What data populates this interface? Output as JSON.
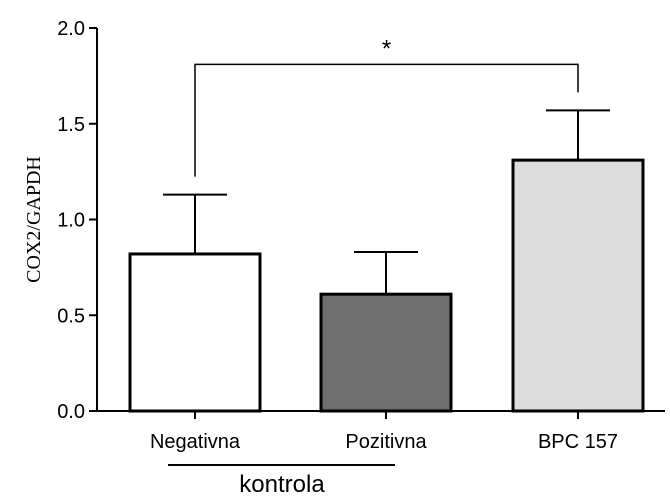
{
  "chart_data": {
    "type": "bar",
    "ylabel": "COX2/GAPDH",
    "ylim": [
      0,
      2.0
    ],
    "yticks": [
      0.0,
      0.5,
      1.0,
      1.5,
      2.0
    ],
    "ytick_labels": [
      "0.0",
      "0.5",
      "1.0",
      "1.5",
      "2.0"
    ],
    "categories": [
      "Negativna",
      "Pozitivna",
      "BPC 157"
    ],
    "values": [
      0.82,
      0.61,
      1.31
    ],
    "error_upper": [
      0.31,
      0.22,
      0.26
    ],
    "bar_colors": [
      "#ffffff",
      "#6e6e6e",
      "#dcdcdc"
    ],
    "group_label": "kontrola",
    "significance": {
      "from": 0,
      "to": 2,
      "label": "*",
      "level": 1.81
    }
  }
}
